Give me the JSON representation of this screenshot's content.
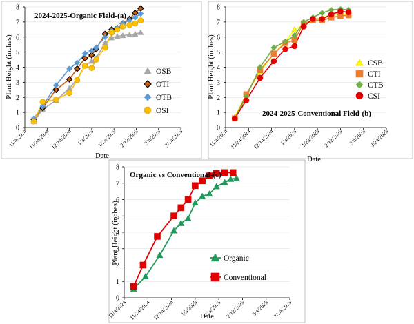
{
  "chart_data": [
    {
      "type": "line",
      "title": "2024-2025-Organic Field-(a)",
      "xlabel": "Date",
      "ylabel": "Plant Height (inches)",
      "ylim": [
        0,
        8
      ],
      "y_ticks": [
        "0",
        "1",
        "2",
        "3",
        "4",
        "5",
        "6",
        "7",
        "8"
      ],
      "x_ticks": [
        "11/4/2024",
        "11/24/2024",
        "12/14/2024",
        "1/3/2025",
        "1/23/2025",
        "2/12/2025",
        "3/4/2025",
        "3/24/2025"
      ],
      "x_tick_days": [
        0,
        20,
        40,
        60,
        80,
        100,
        120,
        140
      ],
      "xlim_days": [
        0,
        140
      ],
      "legend_position": "right",
      "series": [
        {
          "name": "OSB",
          "color": "#a6a6a6",
          "marker": "triangle",
          "x": [
            8,
            16,
            28,
            40,
            47,
            54,
            60,
            64,
            72,
            78,
            83,
            88,
            94,
            99,
            104
          ],
          "y": [
            0.4,
            1.2,
            1.8,
            2.6,
            3.2,
            4.1,
            4.4,
            4.6,
            5.6,
            5.95,
            6.05,
            6.1,
            6.15,
            6.2,
            6.3
          ]
        },
        {
          "name": "OTI",
          "color": "#c55a11",
          "marker": "diamond",
          "x": [
            8,
            16,
            28,
            40,
            47,
            54,
            60,
            64,
            72,
            78,
            83,
            88,
            94,
            99,
            104
          ],
          "y": [
            0.55,
            1.3,
            2.5,
            3.2,
            3.9,
            4.6,
            4.8,
            5.2,
            6.2,
            6.5,
            6.6,
            6.9,
            7.2,
            7.6,
            7.9
          ]
        },
        {
          "name": "OTB",
          "color": "#5b9bd5",
          "marker": "diamond",
          "x": [
            8,
            16,
            28,
            40,
            47,
            54,
            60,
            64,
            72,
            78,
            83,
            88,
            94,
            99,
            104
          ],
          "y": [
            0.6,
            1.4,
            2.8,
            3.9,
            4.3,
            4.9,
            5.1,
            5.3,
            6.0,
            6.4,
            6.6,
            6.9,
            7.1,
            7.3,
            7.55
          ]
        },
        {
          "name": "OSI",
          "color": "#ffc000",
          "marker": "circle",
          "x": [
            8,
            16,
            28,
            40,
            47,
            54,
            60,
            64,
            72,
            78,
            83,
            88,
            94,
            99,
            104
          ],
          "y": [
            0.4,
            1.7,
            1.85,
            2.3,
            3.15,
            4.1,
            3.95,
            4.5,
            5.3,
            6.3,
            6.5,
            6.7,
            6.8,
            6.9,
            7.1
          ]
        }
      ]
    },
    {
      "type": "line",
      "title": "2024-2025-Conventional Field-(b)",
      "xlabel": "Date",
      "ylabel": "Plant Height (inches)",
      "ylim": [
        0,
        8
      ],
      "y_ticks": [
        "0",
        "1",
        "2",
        "3",
        "4",
        "5",
        "6",
        "7",
        "8"
      ],
      "x_ticks": [
        "11/4/2024",
        "11/24/2024",
        "12/14/2024",
        "1/3/2025",
        "1/23/2025",
        "2/12/2025",
        "3/4/2025",
        "3/24/2025"
      ],
      "x_tick_days": [
        0,
        20,
        40,
        60,
        80,
        100,
        120,
        140
      ],
      "xlim_days": [
        0,
        140
      ],
      "legend_position": "right",
      "series": [
        {
          "name": "CSB",
          "color": "#ffff00",
          "marker": "triangle",
          "x": [
            8,
            18,
            30,
            42,
            52,
            60,
            68,
            76,
            84,
            92,
            100,
            107
          ],
          "y": [
            0.7,
            2.2,
            3.7,
            4.9,
            5.7,
            6.5,
            6.8,
            7.1,
            7.3,
            7.45,
            7.5,
            7.5
          ]
        },
        {
          "name": "CTI",
          "color": "#ed7d31",
          "marker": "square",
          "x": [
            8,
            18,
            30,
            42,
            52,
            60,
            68,
            76,
            84,
            92,
            100,
            107
          ],
          "y": [
            0.6,
            2.2,
            3.8,
            4.9,
            5.6,
            5.8,
            6.9,
            7.1,
            7.1,
            7.3,
            7.4,
            7.45
          ]
        },
        {
          "name": "CTB",
          "color": "#70ad47",
          "marker": "diamond",
          "x": [
            8,
            18,
            30,
            42,
            52,
            60,
            68,
            76,
            84,
            92,
            100,
            107
          ],
          "y": [
            0.6,
            2.05,
            4.0,
            5.3,
            5.7,
            6.1,
            7.0,
            7.3,
            7.6,
            7.8,
            7.85,
            7.8
          ]
        },
        {
          "name": "CSI",
          "color": "#e00000",
          "marker": "circle",
          "x": [
            8,
            18,
            30,
            42,
            52,
            60,
            68,
            76,
            84,
            92,
            100,
            107
          ],
          "y": [
            0.6,
            1.8,
            3.3,
            4.4,
            5.2,
            5.4,
            6.7,
            7.2,
            7.2,
            7.5,
            7.7,
            7.65
          ]
        }
      ]
    },
    {
      "type": "line",
      "title": "Organic vs Conventional-(c)",
      "xlabel": "Date",
      "ylabel": "Plant Height (inches)",
      "ylim": [
        0,
        8
      ],
      "y_ticks": [
        "0",
        "1",
        "2",
        "3",
        "4",
        "5",
        "6",
        "7",
        "8"
      ],
      "x_ticks": [
        "11/4/2024",
        "11/24/2024",
        "12/14/2024",
        "1/3/2025",
        "1/23/2025",
        "2/12/2025",
        "3/4/2025",
        "3/24/2025"
      ],
      "x_tick_days": [
        0,
        20,
        40,
        60,
        80,
        100,
        120,
        140
      ],
      "xlim_days": [
        0,
        140
      ],
      "legend_position": "bottom-center",
      "series": [
        {
          "name": "Organic",
          "color": "#1f9a5a",
          "marker": "triangle",
          "x": [
            8,
            18,
            30,
            42,
            48,
            54,
            60,
            66,
            72,
            78,
            85,
            90,
            95
          ],
          "y": [
            0.55,
            1.3,
            2.6,
            4.1,
            4.55,
            4.85,
            5.8,
            6.2,
            6.35,
            6.8,
            7.05,
            7.25,
            7.3
          ]
        },
        {
          "name": "Conventional",
          "color": "#e00000",
          "marker": "square",
          "x": [
            8,
            16,
            28,
            42,
            48,
            54,
            60,
            66,
            72,
            78,
            85,
            92
          ],
          "y": [
            0.7,
            2.0,
            3.75,
            5.0,
            5.5,
            6.0,
            6.85,
            7.15,
            7.45,
            7.6,
            7.65,
            7.65
          ]
        }
      ]
    }
  ]
}
